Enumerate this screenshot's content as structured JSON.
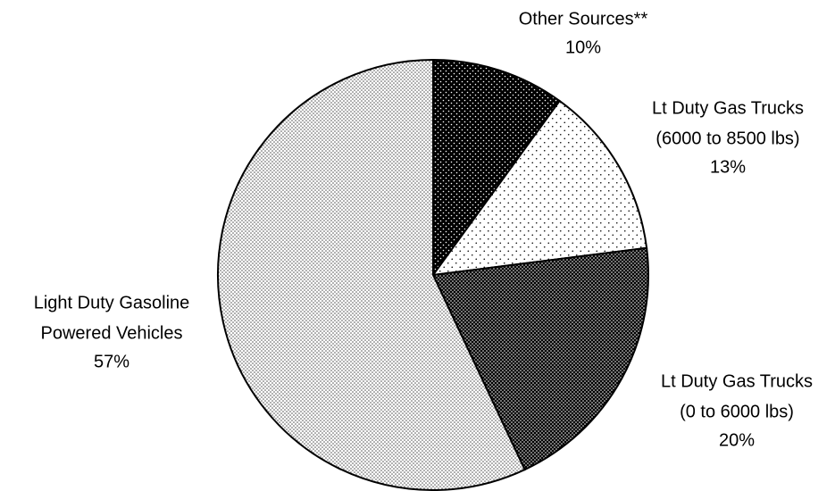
{
  "chart_data": {
    "type": "pie",
    "categories": [
      [
        "Other Sources**"
      ],
      [
        "Lt Duty Gas Trucks",
        "(6000 to 8500 lbs)"
      ],
      [
        "Lt Duty Gas Trucks",
        "(0 to 6000 lbs)"
      ],
      [
        "Light Duty Gasoline",
        "Powered Vehicles"
      ]
    ],
    "values": [
      10,
      13,
      20,
      57
    ],
    "value_labels": [
      "10%",
      "13%",
      "20%",
      "57%"
    ],
    "patterns": [
      {
        "background": "#000000",
        "dot": "#ffffff",
        "spacing": 6
      },
      {
        "background": "#ffffff",
        "dot": "#000000",
        "spacing": 9
      },
      {
        "background": "#000000",
        "dot": "#ffffff",
        "spacing": 4
      },
      {
        "background": "#ffffff",
        "dot": "#555555",
        "spacing": 4
      }
    ]
  }
}
